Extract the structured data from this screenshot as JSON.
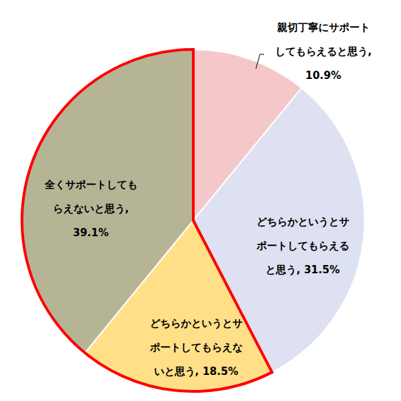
{
  "chart_data": {
    "type": "pie",
    "categories": [
      "親切丁寧にサポートしてもらえると思う,",
      "どちらかというとサポートしてもらえると思う,",
      "どちらかというとサポートしてもらえないと思う,",
      "全くサポートしてもらえないと思う,"
    ],
    "values": [
      10.9,
      31.5,
      18.5,
      39.1
    ],
    "value_labels": [
      "10.9%",
      "31.5%",
      "18.5%",
      "39.1%"
    ],
    "colors": [
      "#f4c7c9",
      "#dde1f1",
      "#ffdf88",
      "#b5b596"
    ],
    "data_labels": true
  }
}
